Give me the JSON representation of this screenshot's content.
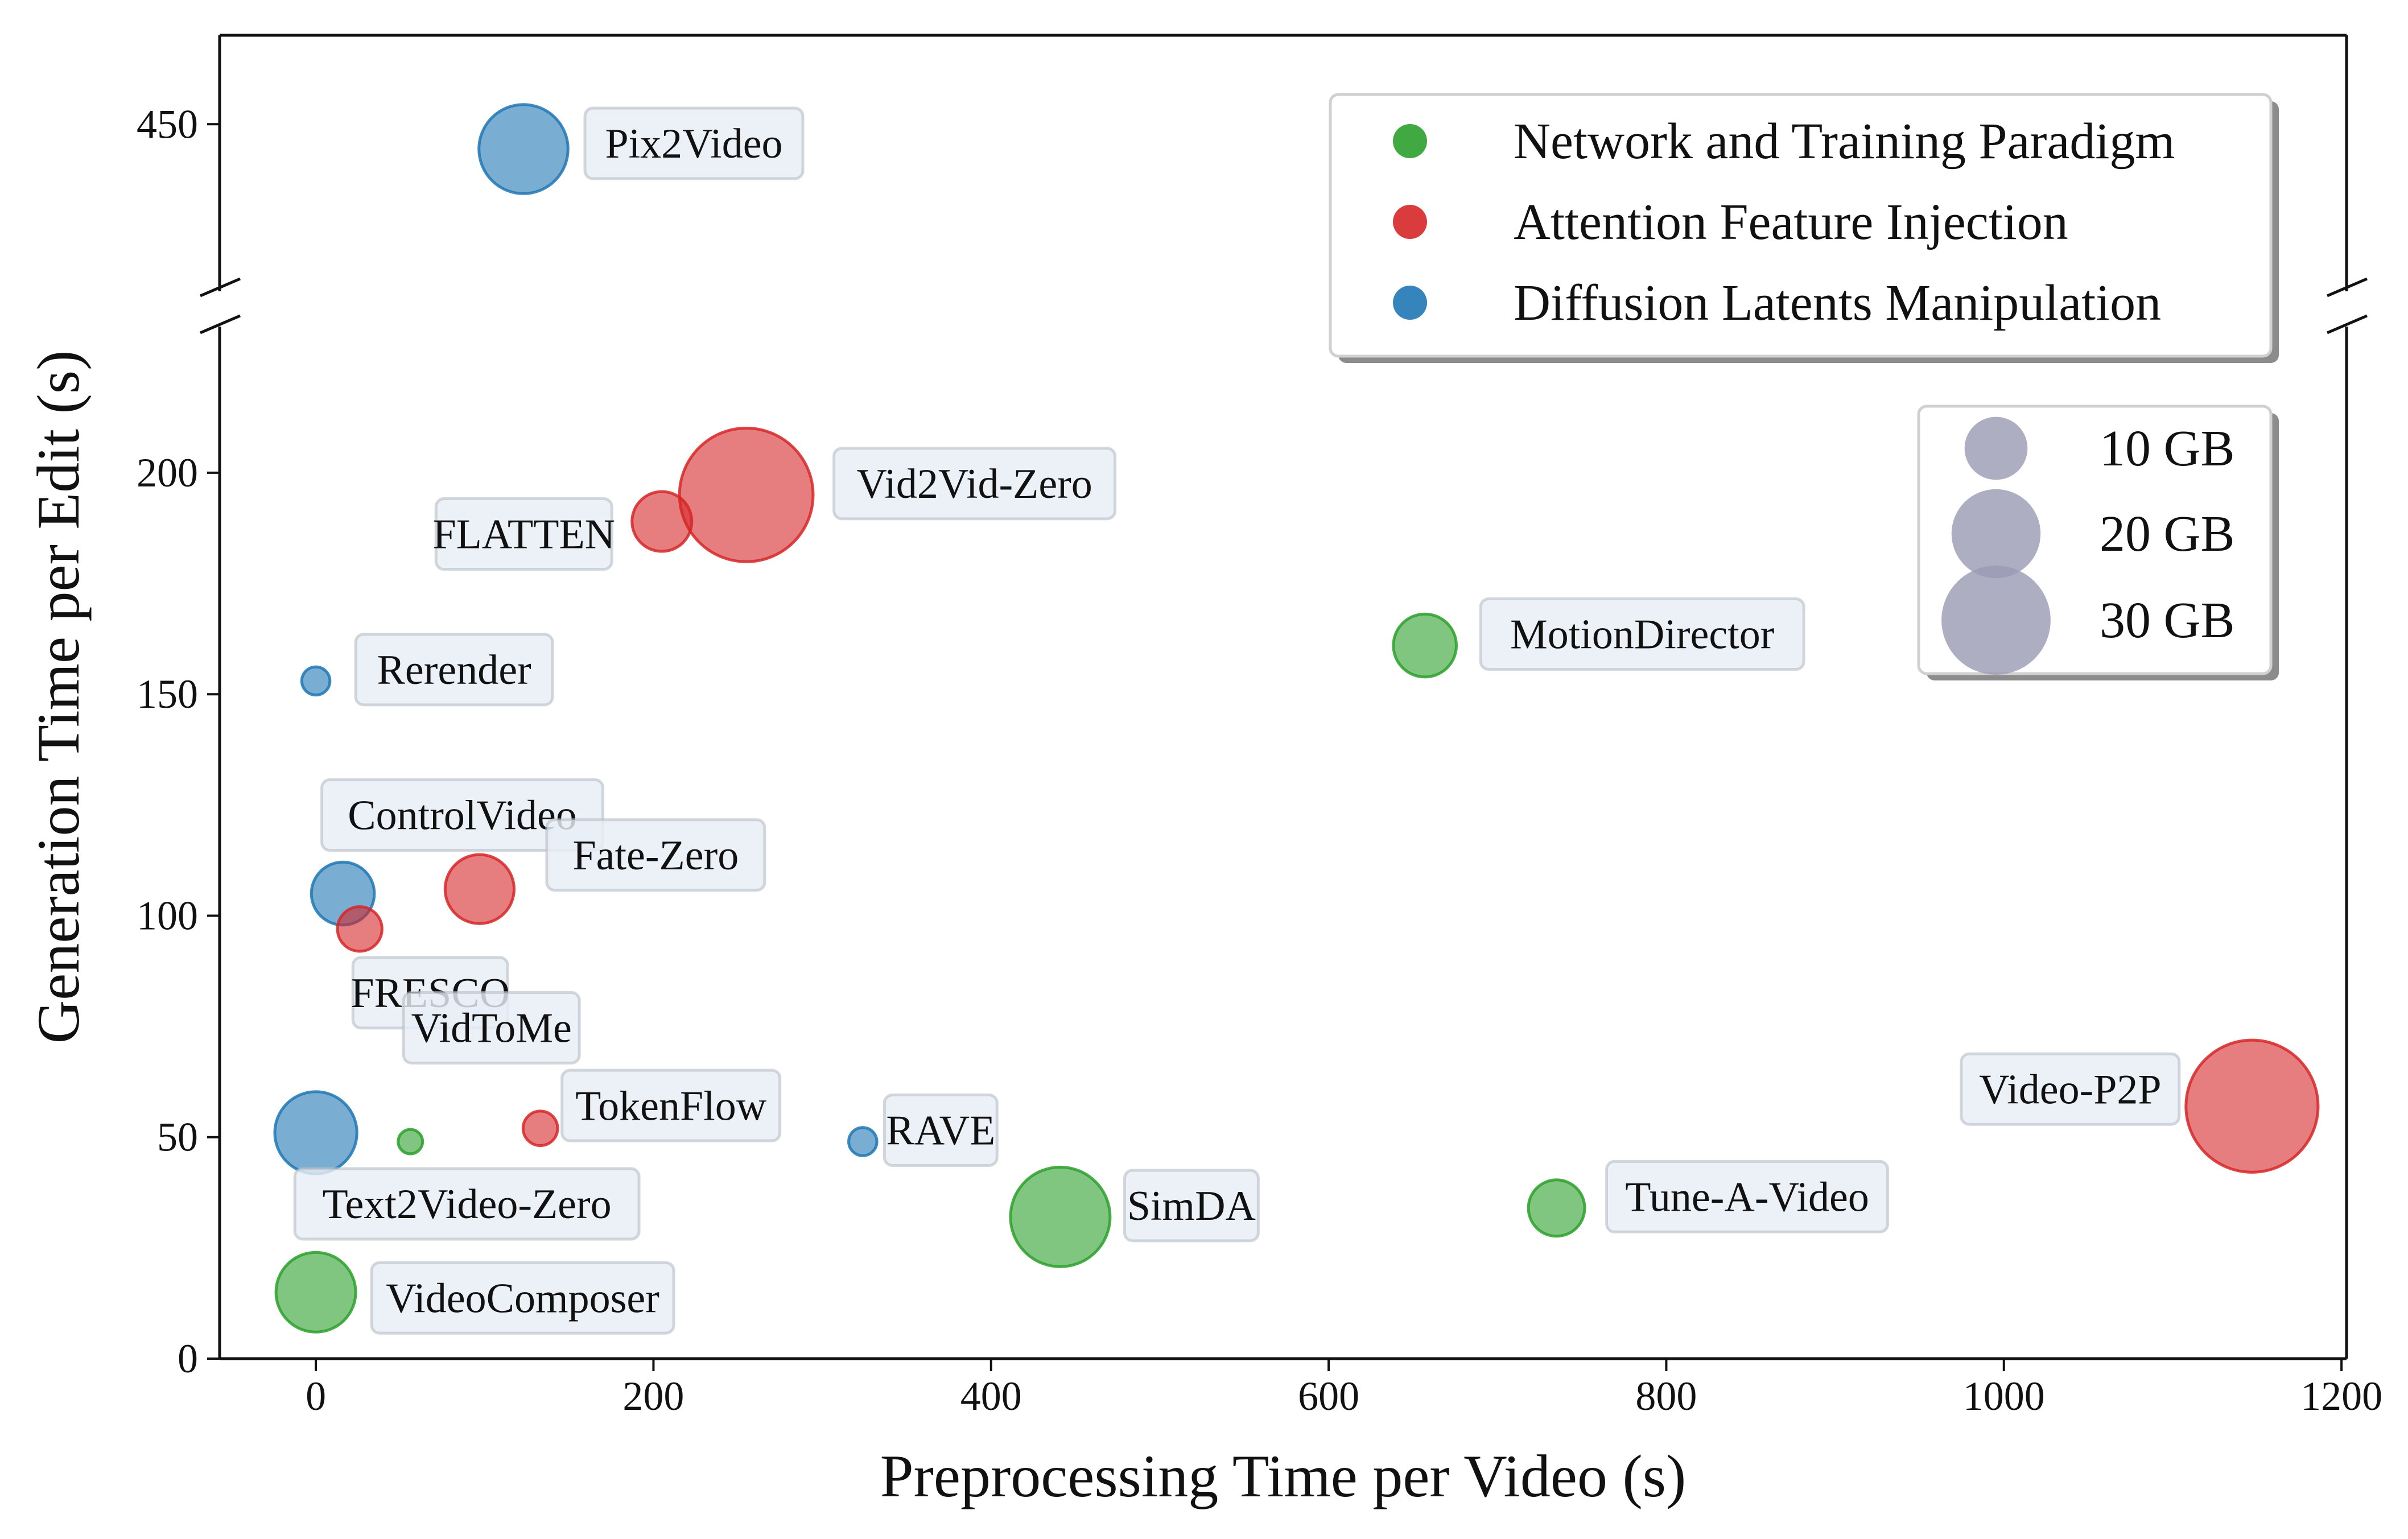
{
  "chart_data": {
    "type": "scatter",
    "subtype": "bubble",
    "title": "",
    "xlabel": "Preprocessing Time per Video (s)",
    "ylabel": "Generation Time per Edit (s)",
    "xlim": [
      -57,
      1203
    ],
    "ylim_lower": [
      0,
      233
    ],
    "ylim_upper": [
      403,
      475
    ],
    "broken_y_axis": true,
    "x_ticks": [
      "0",
      "200",
      "400",
      "600",
      "800",
      "1000",
      "1200"
    ],
    "y_ticks_lower": [
      "0",
      "50",
      "100",
      "150",
      "200"
    ],
    "y_ticks_upper": [
      "450"
    ],
    "categories": [
      {
        "key": "network",
        "name": "Network and Training Paradigm",
        "color": "#2ca02c"
      },
      {
        "key": "attention",
        "name": "Attention Feature Injection",
        "color": "#d62728"
      },
      {
        "key": "latents",
        "name": "Diffusion Latents Manipulation",
        "color": "#1f77b4"
      }
    ],
    "points": [
      {
        "name": "Pix2Video",
        "category": "latents",
        "x": 123,
        "y": 443,
        "memory_gb": 20
      },
      {
        "name": "Vid2Vid-Zero",
        "category": "attention",
        "x": 255,
        "y": 195,
        "memory_gb": 45
      },
      {
        "name": "FLATTEN",
        "category": "attention",
        "x": 205,
        "y": 189,
        "memory_gb": 9
      },
      {
        "name": "MotionDirector",
        "category": "network",
        "x": 657,
        "y": 161,
        "memory_gb": 10
      },
      {
        "name": "Rerender",
        "category": "latents",
        "x": 0,
        "y": 153,
        "memory_gb": 2
      },
      {
        "name": "ControlVideo",
        "category": "latents",
        "x": 16,
        "y": 105,
        "memory_gb": 10
      },
      {
        "name": "Fate-Zero",
        "category": "attention",
        "x": 97,
        "y": 106,
        "memory_gb": 12
      },
      {
        "name": "FRESCO",
        "category": "attention",
        "x": 26,
        "y": 97,
        "memory_gb": 5
      },
      {
        "name": "VidToMe",
        "category": "network",
        "x": 56,
        "y": 49,
        "memory_gb": 1.5
      },
      {
        "name": "TokenFlow",
        "category": "attention",
        "x": 133,
        "y": 52,
        "memory_gb": 3
      },
      {
        "name": "RAVE",
        "category": "latents",
        "x": 324,
        "y": 49,
        "memory_gb": 2
      },
      {
        "name": "Video-P2P",
        "category": "attention",
        "x": 1147,
        "y": 57,
        "memory_gb": 44
      },
      {
        "name": "Text2Video-Zero",
        "category": "latents",
        "x": 0,
        "y": 51,
        "memory_gb": 17
      },
      {
        "name": "SimDA",
        "category": "network",
        "x": 441,
        "y": 32,
        "memory_gb": 25
      },
      {
        "name": "Tune-A-Video",
        "category": "network",
        "x": 735,
        "y": 34,
        "memory_gb": 8
      },
      {
        "name": "VideoComposer",
        "category": "network",
        "x": 0,
        "y": 15,
        "memory_gb": 16
      }
    ],
    "size_legend": [
      {
        "label": "10 GB",
        "memory_gb": 10
      },
      {
        "label": "20 GB",
        "memory_gb": 20
      },
      {
        "label": "30 GB",
        "memory_gb": 30
      }
    ],
    "legend_placement": "top-right",
    "grid": false
  }
}
